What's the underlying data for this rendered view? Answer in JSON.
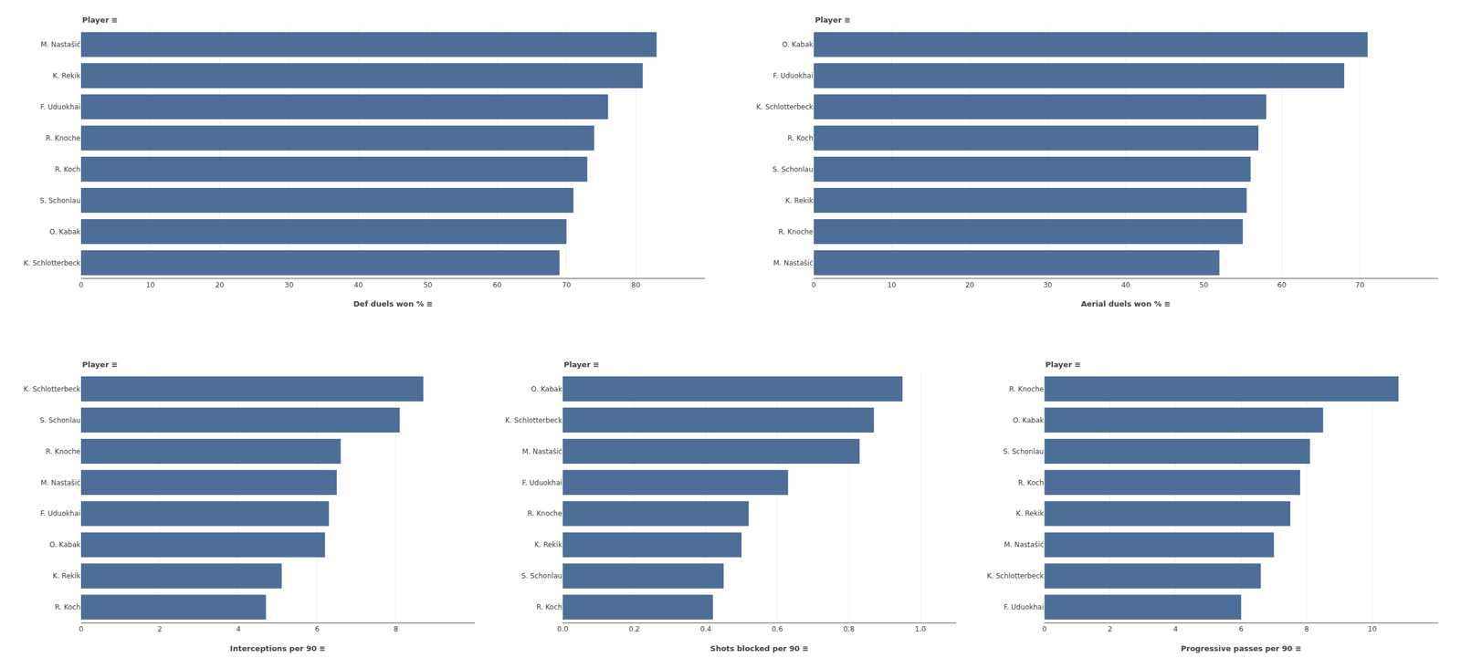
{
  "chart_data": [
    {
      "type": "bar",
      "orientation": "horizontal",
      "xlabel": "Def duels won % ≡",
      "ylabel": "Player ≡",
      "categories": [
        "M. Nastašić",
        "K. Rekik",
        "F. Uduokhai",
        "R. Knoche",
        "R. Koch",
        "S. Schonlau",
        "O. Kabak",
        "K. Schlotterbeck"
      ],
      "values": [
        83,
        81,
        76,
        74,
        73,
        71,
        70,
        69
      ],
      "color": "#4d6e96",
      "xlim": [
        0,
        90
      ],
      "xticks": [
        0,
        10,
        20,
        30,
        40,
        50,
        60,
        70,
        80
      ],
      "grid": true
    },
    {
      "type": "bar",
      "orientation": "horizontal",
      "xlabel": "Aerial duels won % ≡",
      "ylabel": "Player ≡",
      "categories": [
        "O. Kabak",
        "F. Uduokhai",
        "K. Schlotterbeck",
        "R. Koch",
        "S. Schonlau",
        "K. Rekik",
        "R. Knoche",
        "M. Nastašić"
      ],
      "values": [
        71,
        68,
        58,
        57,
        56,
        55.5,
        55,
        52
      ],
      "color": "#4d6e96",
      "xlim": [
        0,
        80
      ],
      "xticks": [
        0,
        10,
        20,
        30,
        40,
        50,
        60,
        70
      ],
      "grid": true
    },
    {
      "type": "bar",
      "orientation": "horizontal",
      "xlabel": "Interceptions per 90 ≡",
      "ylabel": "Player ≡",
      "categories": [
        "K. Schlotterbeck",
        "S. Schonlau",
        "R. Knoche",
        "M. Nastašić",
        "F. Uduokhai",
        "O. Kabak",
        "K. Rekik",
        "R. Koch"
      ],
      "values": [
        8.7,
        8.1,
        6.6,
        6.5,
        6.3,
        6.2,
        5.1,
        4.7
      ],
      "color": "#4d6e96",
      "xlim": [
        0,
        10
      ],
      "xticks": [
        0,
        2,
        4,
        6,
        8
      ],
      "grid": true
    },
    {
      "type": "bar",
      "orientation": "horizontal",
      "xlabel": "Shots blocked per 90 ≡",
      "ylabel": "Player ≡",
      "categories": [
        "O. Kabak",
        "K. Schlotterbeck",
        "M. Nastašić",
        "F. Uduokhai",
        "R. Knoche",
        "K. Rekik",
        "S. Schonlau",
        "R. Koch"
      ],
      "values": [
        0.95,
        0.87,
        0.83,
        0.63,
        0.52,
        0.5,
        0.45,
        0.42
      ],
      "color": "#4d6e96",
      "xlim": [
        0,
        1.1
      ],
      "xticks": [
        {
          "value": 0,
          "label": "0.0"
        },
        0.2,
        0.4,
        0.6,
        0.8,
        {
          "value": 1,
          "label": "1.0"
        }
      ],
      "grid": true
    },
    {
      "type": "bar",
      "orientation": "horizontal",
      "xlabel": "Progressive passes per 90 ≡",
      "ylabel": "Player ≡",
      "categories": [
        "R. Knoche",
        "O. Kabak",
        "S. Schonlau",
        "R. Koch",
        "K. Rekik",
        "M. Nastašić",
        "K. Schlotterbeck",
        "F. Uduokhai"
      ],
      "values": [
        10.8,
        8.5,
        8.1,
        7.8,
        7.5,
        7.0,
        6.6,
        6.0
      ],
      "color": "#4d6e96",
      "xlim": [
        0,
        12
      ],
      "xticks": [
        0,
        2,
        4,
        6,
        8,
        10
      ],
      "grid": true
    }
  ]
}
